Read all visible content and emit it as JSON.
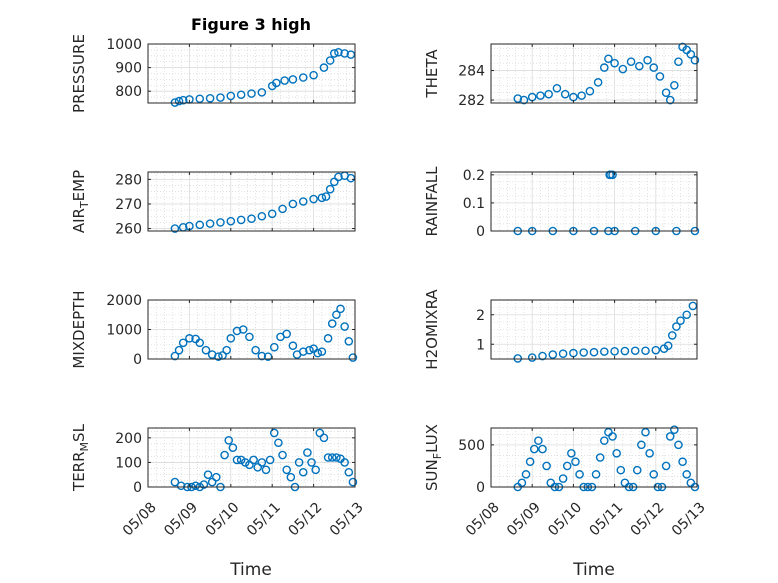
{
  "figure": {
    "title": "Figure 3 high",
    "marker_color": "#0072bd",
    "x_ticks": [
      "05/08",
      "05/09",
      "05/10",
      "05/11",
      "05/12",
      "05/13"
    ],
    "xlabel": "Time"
  },
  "chart_data": [
    {
      "type": "scatter",
      "ylabel": "PRESSURE",
      "ylim": [
        750,
        1000
      ],
      "yticks": [
        800,
        900,
        1000
      ],
      "grid": true,
      "x": [
        8.65,
        8.75,
        8.85,
        9.0,
        9.25,
        9.5,
        9.75,
        10.0,
        10.25,
        10.5,
        10.75,
        11.0,
        11.1,
        11.3,
        11.5,
        11.75,
        12.0,
        12.25,
        12.4,
        12.5,
        12.6,
        12.75,
        12.9
      ],
      "y": [
        752,
        758,
        762,
        765,
        768,
        770,
        773,
        780,
        785,
        790,
        795,
        822,
        835,
        845,
        850,
        858,
        868,
        900,
        930,
        960,
        965,
        960,
        955
      ]
    },
    {
      "type": "scatter",
      "ylabel": "THETA",
      "ylim": [
        281.8,
        285.8
      ],
      "yticks": [
        282,
        284
      ],
      "grid": true,
      "x": [
        8.65,
        8.8,
        9.0,
        9.2,
        9.4,
        9.6,
        9.8,
        10.0,
        10.2,
        10.4,
        10.6,
        10.75,
        10.85,
        11.0,
        11.2,
        11.4,
        11.6,
        11.8,
        11.95,
        12.1,
        12.25,
        12.35,
        12.45,
        12.55,
        12.65,
        12.75,
        12.85,
        12.95
      ],
      "y": [
        282.1,
        282.0,
        282.2,
        282.3,
        282.4,
        282.8,
        282.4,
        282.2,
        282.3,
        282.6,
        283.2,
        284.2,
        284.8,
        284.5,
        284.1,
        284.6,
        284.3,
        284.7,
        284.2,
        283.6,
        282.5,
        282.0,
        283.0,
        284.6,
        285.6,
        285.4,
        285.1,
        284.7
      ]
    },
    {
      "type": "scatter",
      "ylabel": "AIR_TEMP",
      "ylim": [
        259,
        283
      ],
      "yticks": [
        260,
        270,
        280
      ],
      "grid": true,
      "x": [
        8.65,
        8.85,
        9.0,
        9.25,
        9.5,
        9.75,
        10.0,
        10.25,
        10.5,
        10.75,
        11.0,
        11.25,
        11.5,
        11.75,
        12.0,
        12.2,
        12.3,
        12.4,
        12.5,
        12.6,
        12.75,
        12.9
      ],
      "y": [
        260,
        260.5,
        261,
        261.5,
        262,
        262.5,
        263,
        263.5,
        264,
        265,
        266,
        268,
        270,
        271,
        272,
        272.5,
        273,
        276,
        279,
        281,
        281.5,
        280.5
      ]
    },
    {
      "type": "scatter",
      "ylabel": "RAINFALL",
      "ylim": [
        0,
        0.21
      ],
      "yticks": [
        0,
        0.1,
        0.2
      ],
      "grid": true,
      "x": [
        8.65,
        9.0,
        9.5,
        10.0,
        10.5,
        10.85,
        10.88,
        10.9,
        10.95,
        11.0,
        11.5,
        12.0,
        12.5,
        12.95
      ],
      "y": [
        0,
        0,
        0,
        0,
        0,
        0,
        0.2,
        0.2,
        0.2,
        0,
        0,
        0,
        0,
        0
      ]
    },
    {
      "type": "scatter",
      "ylabel": "MIXDEPTH",
      "ylim": [
        0,
        2000
      ],
      "yticks": [
        0,
        1000,
        2000
      ],
      "grid": true,
      "x": [
        8.65,
        8.75,
        8.85,
        9.0,
        9.15,
        9.25,
        9.4,
        9.55,
        9.7,
        9.8,
        9.9,
        10.0,
        10.15,
        10.3,
        10.45,
        10.6,
        10.75,
        10.9,
        11.05,
        11.2,
        11.35,
        11.5,
        11.6,
        11.75,
        11.9,
        12.0,
        12.1,
        12.2,
        12.35,
        12.45,
        12.55,
        12.65,
        12.75,
        12.85,
        12.95
      ],
      "y": [
        100,
        300,
        550,
        700,
        680,
        550,
        300,
        150,
        80,
        120,
        300,
        700,
        950,
        1000,
        750,
        300,
        100,
        80,
        400,
        750,
        850,
        450,
        150,
        250,
        300,
        350,
        200,
        250,
        700,
        1200,
        1500,
        1700,
        1100,
        600,
        50
      ]
    },
    {
      "type": "scatter",
      "ylabel": "H2OMIXRA",
      "ylim": [
        0.5,
        2.5
      ],
      "yticks": [
        1,
        2
      ],
      "grid": true,
      "x": [
        8.65,
        9.0,
        9.25,
        9.5,
        9.75,
        10.0,
        10.25,
        10.5,
        10.75,
        11.0,
        11.25,
        11.5,
        11.75,
        12.0,
        12.2,
        12.3,
        12.4,
        12.5,
        12.6,
        12.75,
        12.9
      ],
      "y": [
        0.52,
        0.55,
        0.6,
        0.65,
        0.68,
        0.7,
        0.72,
        0.73,
        0.75,
        0.76,
        0.77,
        0.78,
        0.78,
        0.8,
        0.85,
        0.95,
        1.3,
        1.6,
        1.8,
        2.0,
        2.3
      ]
    },
    {
      "type": "scatter",
      "ylabel": "TERR_MSL",
      "ylim": [
        0,
        240
      ],
      "yticks": [
        0,
        100,
        200
      ],
      "grid": true,
      "x": [
        8.65,
        8.8,
        8.95,
        9.05,
        9.15,
        9.25,
        9.35,
        9.45,
        9.55,
        9.65,
        9.75,
        9.85,
        9.95,
        10.05,
        10.15,
        10.25,
        10.35,
        10.45,
        10.55,
        10.65,
        10.75,
        10.85,
        10.95,
        11.05,
        11.15,
        11.25,
        11.35,
        11.45,
        11.55,
        11.65,
        11.75,
        11.85,
        11.95,
        12.05,
        12.15,
        12.25,
        12.35,
        12.45,
        12.55,
        12.65,
        12.75,
        12.85,
        12.95
      ],
      "y": [
        20,
        5,
        0,
        0,
        5,
        0,
        10,
        50,
        20,
        40,
        0,
        130,
        190,
        160,
        110,
        110,
        100,
        90,
        110,
        80,
        100,
        70,
        110,
        220,
        180,
        130,
        70,
        40,
        0,
        100,
        60,
        140,
        100,
        70,
        220,
        200,
        120,
        120,
        120,
        115,
        100,
        60,
        20
      ]
    },
    {
      "type": "scatter",
      "ylabel": "SUN_FLUX",
      "ylim": [
        0,
        700
      ],
      "yticks": [
        0,
        500
      ],
      "grid": true,
      "x": [
        8.65,
        8.75,
        8.85,
        8.95,
        9.05,
        9.15,
        9.25,
        9.35,
        9.45,
        9.55,
        9.65,
        9.75,
        9.85,
        9.95,
        10.05,
        10.15,
        10.25,
        10.35,
        10.45,
        10.55,
        10.65,
        10.75,
        10.85,
        10.95,
        11.05,
        11.15,
        11.25,
        11.35,
        11.45,
        11.55,
        11.65,
        11.75,
        11.85,
        11.95,
        12.05,
        12.15,
        12.25,
        12.35,
        12.45,
        12.55,
        12.65,
        12.75,
        12.85,
        12.95
      ],
      "y": [
        0,
        50,
        150,
        300,
        450,
        550,
        450,
        250,
        50,
        0,
        0,
        100,
        250,
        400,
        300,
        150,
        0,
        0,
        0,
        150,
        350,
        550,
        650,
        600,
        400,
        200,
        50,
        0,
        0,
        200,
        500,
        650,
        400,
        150,
        0,
        0,
        250,
        600,
        680,
        500,
        300,
        150,
        50,
        0
      ]
    }
  ]
}
